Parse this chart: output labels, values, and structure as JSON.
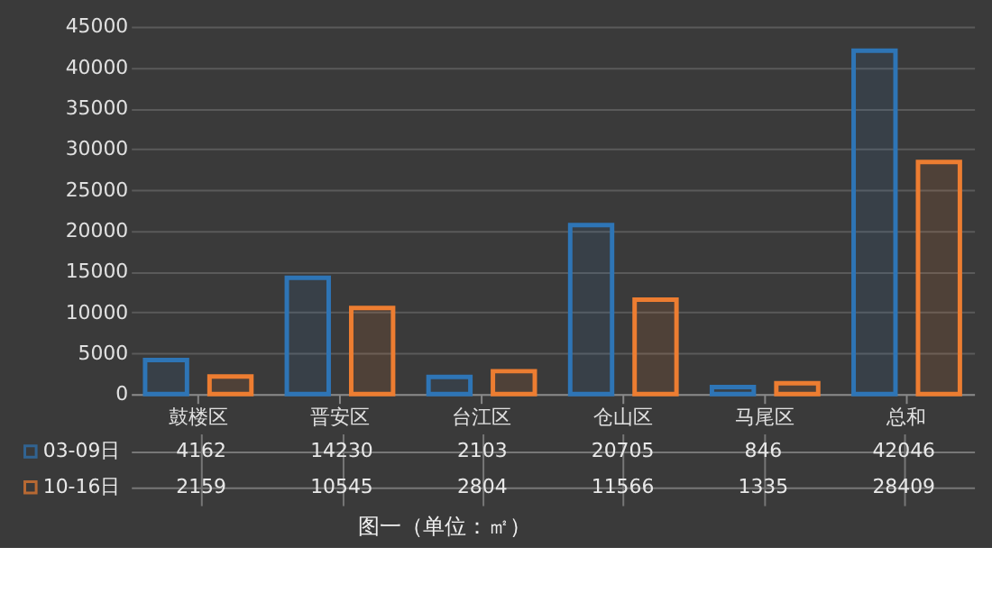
{
  "chart_data": {
    "type": "bar",
    "categories": [
      "鼓楼区",
      "晋安区",
      "台江区",
      "仓山区",
      "马尾区",
      "总和"
    ],
    "series": [
      {
        "name": "03-09日",
        "color": "#2e75b6",
        "values": [
          4162,
          14230,
          2103,
          20705,
          846,
          42046
        ]
      },
      {
        "name": "10-16日",
        "color": "#ed7d31",
        "values": [
          2159,
          10545,
          2804,
          11566,
          1335,
          28409
        ]
      }
    ],
    "ylim": [
      0,
      45000
    ],
    "yticks": [
      0,
      5000,
      10000,
      15000,
      20000,
      25000,
      30000,
      35000,
      40000,
      45000
    ],
    "grid": "y",
    "data_labels": true,
    "legend": "bottom",
    "annotations": [
      "图一（单位：㎡）"
    ]
  }
}
